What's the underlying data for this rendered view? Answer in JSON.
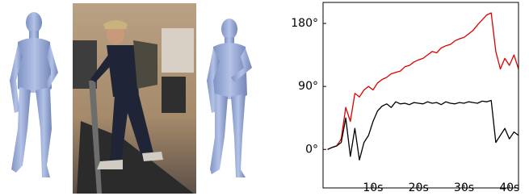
{
  "chart_data": {
    "type": "line",
    "x": [
      0,
      1,
      2,
      3,
      4,
      5,
      6,
      7,
      8,
      9,
      10,
      11,
      12,
      13,
      14,
      15,
      16,
      17,
      18,
      19,
      20,
      21,
      22,
      23,
      24,
      25,
      26,
      27,
      28,
      29,
      30,
      31,
      32,
      33,
      34,
      35,
      36,
      37,
      38,
      39,
      40,
      41,
      42
    ],
    "series": [
      {
        "color": "#e00000",
        "values": [
          0,
          3,
          5,
          15,
          60,
          40,
          80,
          75,
          85,
          90,
          85,
          95,
          100,
          103,
          108,
          110,
          112,
          118,
          120,
          125,
          128,
          130,
          135,
          140,
          138,
          145,
          148,
          150,
          155,
          158,
          160,
          165,
          170,
          178,
          185,
          192,
          195,
          140,
          115,
          130,
          120,
          135,
          115
        ]
      },
      {
        "color": "#000000",
        "values": [
          0,
          3,
          5,
          10,
          45,
          -10,
          30,
          -15,
          10,
          20,
          40,
          55,
          62,
          65,
          60,
          68,
          65,
          66,
          64,
          67,
          66,
          65,
          68,
          66,
          67,
          64,
          68,
          66,
          65,
          67,
          66,
          68,
          67,
          66,
          69,
          68,
          70,
          10,
          20,
          30,
          15,
          25,
          20
        ]
      }
    ],
    "xlim": [
      -1,
      42
    ],
    "ylim": [
      -55,
      210
    ],
    "xticks": [
      {
        "value": 10,
        "label": "10s"
      },
      {
        "value": 20,
        "label": "20s"
      },
      {
        "value": 30,
        "label": "30s"
      },
      {
        "value": 40,
        "label": "40s"
      }
    ],
    "yticks": [
      {
        "value": 0,
        "label": "0°"
      },
      {
        "value": 90,
        "label": "90°"
      },
      {
        "value": 180,
        "label": "180°"
      }
    ]
  }
}
